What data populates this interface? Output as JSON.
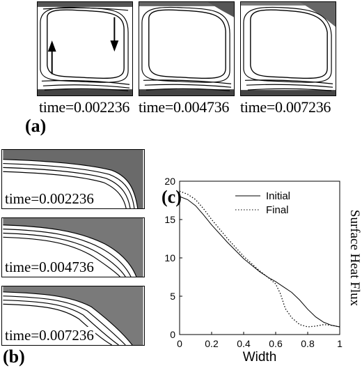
{
  "panel_a": {
    "letter": "(a)",
    "frames": [
      {
        "time_label": "time=0.002236"
      },
      {
        "time_label": "time=0.004736"
      },
      {
        "time_label": "time=0.007236"
      }
    ]
  },
  "panel_b": {
    "letter": "(b)",
    "frames": [
      {
        "time_label": "time=0.002236"
      },
      {
        "time_label": "time=0.004736"
      },
      {
        "time_label": "time=0.007236"
      }
    ]
  },
  "panel_c": {
    "letter": "(c)"
  },
  "chart_data": {
    "type": "line",
    "xlabel": "Width",
    "ylabel": "Surface Heat Flux",
    "xlim": [
      0,
      1
    ],
    "ylim": [
      0,
      20
    ],
    "x_ticks": [
      "0",
      "0.2",
      "0.4",
      "0.6",
      "0.8",
      "1"
    ],
    "y_ticks": [
      "0",
      "5",
      "10",
      "15",
      "20"
    ],
    "legend_position": "top-right",
    "series": [
      {
        "name": "Initial",
        "style": "solid",
        "x": [
          0,
          0.05,
          0.1,
          0.15,
          0.2,
          0.3,
          0.4,
          0.5,
          0.55,
          0.6,
          0.65,
          0.7,
          0.75,
          0.8,
          0.85,
          0.9,
          0.95,
          1.0
        ],
        "y": [
          18.0,
          17.6,
          16.8,
          15.6,
          14.3,
          12.0,
          9.9,
          8.2,
          7.5,
          6.9,
          6.2,
          5.5,
          4.5,
          3.3,
          2.3,
          1.6,
          1.2,
          1.0
        ]
      },
      {
        "name": "Final",
        "style": "dotted",
        "x": [
          0,
          0.05,
          0.1,
          0.15,
          0.2,
          0.3,
          0.4,
          0.5,
          0.55,
          0.6,
          0.63,
          0.66,
          0.7,
          0.75,
          0.8,
          0.85,
          0.9,
          0.95,
          1.0
        ],
        "y": [
          18.7,
          18.3,
          17.6,
          16.4,
          15.0,
          12.5,
          10.2,
          8.3,
          7.5,
          6.6,
          5.3,
          3.4,
          2.2,
          1.3,
          1.0,
          1.1,
          1.3,
          1.2,
          1.0
        ]
      }
    ]
  }
}
